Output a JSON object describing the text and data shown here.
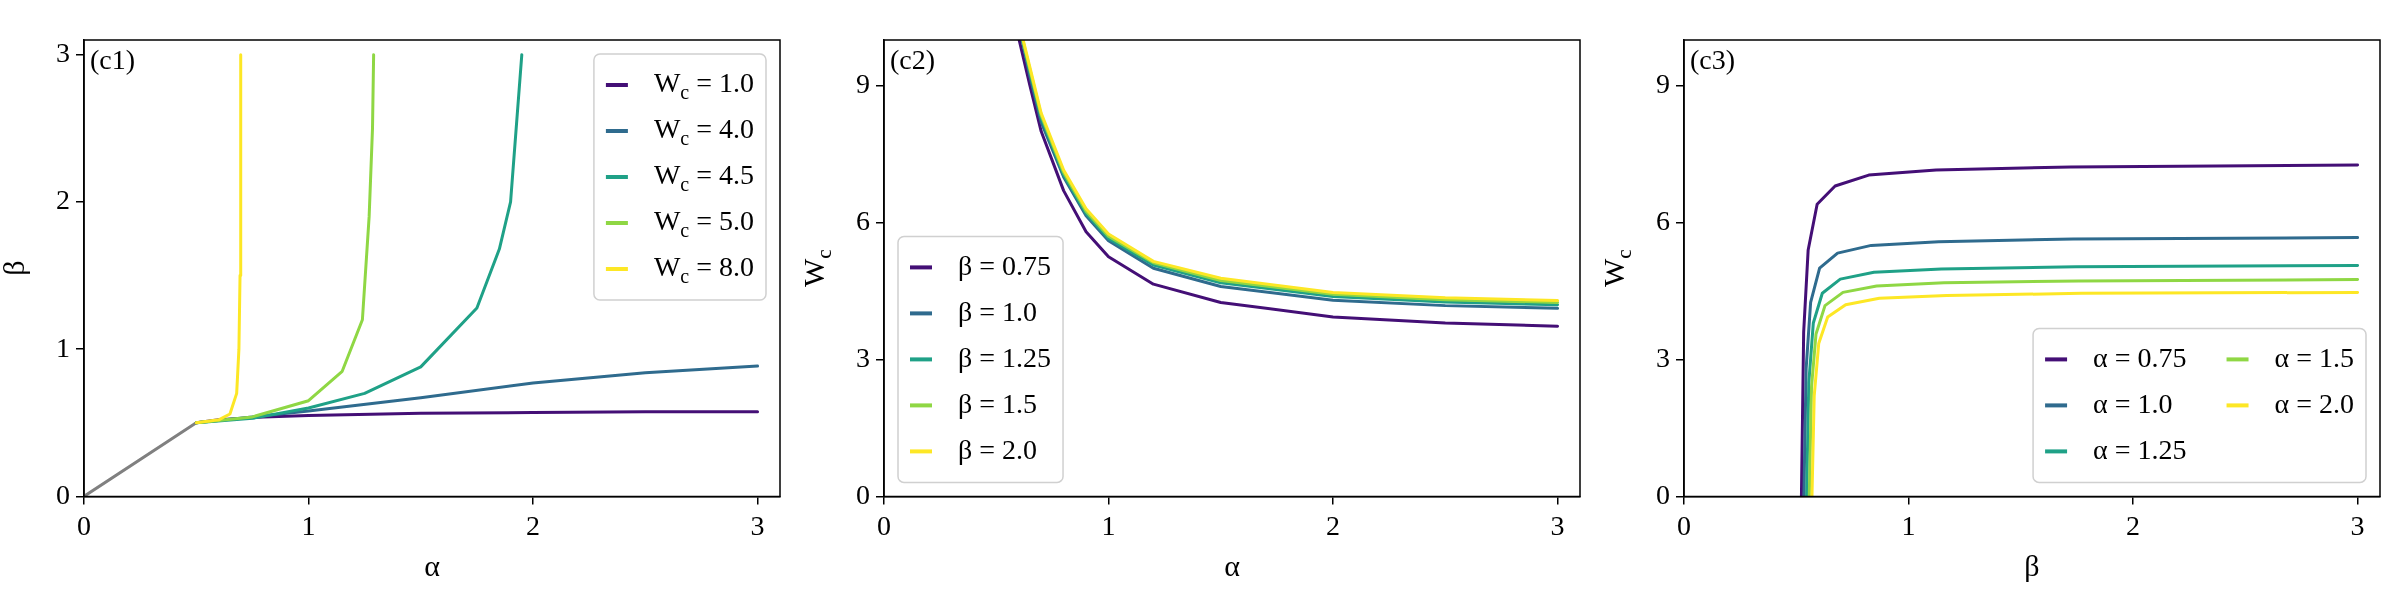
{
  "chart_data": [
    {
      "type": "line",
      "xlabel": "α",
      "ylabel": "β",
      "annotations": [
        "(c1)"
      ],
      "xlim": [
        0,
        3.1
      ],
      "ylim": [
        0,
        3.1
      ],
      "xticks": [
        0,
        1,
        2,
        3
      ],
      "yticks": [
        0,
        1,
        2,
        3
      ],
      "grid": false,
      "legend": "top right",
      "series": [
        {
          "color": "#808080",
          "x": [
            0,
            0.5
          ],
          "values": [
            0,
            0.5
          ]
        },
        {
          "name": "W$_{c}$ = 1.0",
          "color": "#440f76",
          "x": [
            0.5,
            0.6,
            0.8,
            1.0,
            1.5,
            2.0,
            2.5,
            3.0
          ],
          "values": [
            0.5,
            0.52,
            0.54,
            0.55,
            0.565,
            0.57,
            0.575,
            0.575
          ]
        },
        {
          "name": "W$_{c}$ = 4.0",
          "color": "#2f6b8e",
          "x": [
            0.5,
            0.75,
            1.0,
            1.5,
            2.0,
            2.5,
            3.0
          ],
          "values": [
            0.5,
            0.54,
            0.58,
            0.67,
            0.77,
            0.84,
            0.885
          ]
        },
        {
          "name": "W$_{c}$ = 4.5",
          "color": "#1fa187",
          "x": [
            0.5,
            0.75,
            1.0,
            1.25,
            1.5,
            1.75,
            1.85,
            1.9,
            1.95
          ],
          "values": [
            0.5,
            0.53,
            0.6,
            0.7,
            0.88,
            1.28,
            1.68,
            2.0,
            3.0
          ]
        },
        {
          "name": "W$_{c}$ = 5.0",
          "color": "#8fd744",
          "x": [
            0.5,
            0.75,
            1.0,
            1.15,
            1.24,
            1.27,
            1.285,
            1.29
          ],
          "values": [
            0.5,
            0.54,
            0.65,
            0.85,
            1.2,
            1.9,
            2.5,
            3.0
          ]
        },
        {
          "name": "W$_{c}$ = 8.0",
          "color": "#fde725",
          "x": [
            0.5,
            0.6,
            0.65,
            0.68,
            0.69,
            0.695,
            0.698
          ],
          "values": [
            0.5,
            0.52,
            0.56,
            0.7,
            1.0,
            1.5,
            3.0
          ]
        }
      ]
    },
    {
      "type": "line",
      "xlabel": "α",
      "ylabel": "W$_{c}$",
      "annotations": [
        "(c2)"
      ],
      "xlim": [
        0,
        3.1
      ],
      "ylim": [
        0,
        10
      ],
      "xticks": [
        0,
        1,
        2,
        3
      ],
      "yticks": [
        0,
        3,
        6,
        9
      ],
      "grid": false,
      "legend": "bottom left",
      "series": [
        {
          "name": "β = 0.75",
          "color": "#440f76",
          "x": [
            0.602,
            0.65,
            0.7,
            0.8,
            0.9,
            1.0,
            1.2,
            1.5,
            2.0,
            2.5,
            3.0
          ],
          "values": [
            10,
            9.0,
            8.0,
            6.7,
            5.8,
            5.25,
            4.65,
            4.25,
            3.93,
            3.8,
            3.73
          ]
        },
        {
          "name": "β = 1.0",
          "color": "#2f6b8e",
          "x": [
            0.615,
            0.65,
            0.7,
            0.8,
            0.9,
            1.0,
            1.2,
            1.5,
            2.0,
            2.5,
            3.0
          ],
          "values": [
            10,
            9.2,
            8.2,
            7.0,
            6.15,
            5.6,
            5.0,
            4.6,
            4.3,
            4.18,
            4.12
          ]
        },
        {
          "name": "β = 1.25",
          "color": "#1fa187",
          "x": [
            0.617,
            0.65,
            0.7,
            0.8,
            0.9,
            1.0,
            1.2,
            1.5,
            2.0,
            2.5,
            3.0
          ],
          "values": [
            10,
            9.3,
            8.3,
            7.05,
            6.2,
            5.65,
            5.07,
            4.68,
            4.38,
            4.26,
            4.2
          ]
        },
        {
          "name": "β = 1.5",
          "color": "#8fd744",
          "x": [
            0.618,
            0.65,
            0.7,
            0.8,
            0.9,
            1.0,
            1.2,
            1.5,
            2.0,
            2.5,
            3.0
          ],
          "values": [
            10,
            9.35,
            8.35,
            7.1,
            6.25,
            5.7,
            5.12,
            4.73,
            4.43,
            4.31,
            4.25
          ]
        },
        {
          "name": "β = 2.0",
          "color": "#fde725",
          "x": [
            0.62,
            0.65,
            0.7,
            0.8,
            0.9,
            1.0,
            1.2,
            1.5,
            2.0,
            2.5,
            3.0
          ],
          "values": [
            10,
            9.4,
            8.4,
            7.15,
            6.3,
            5.75,
            5.15,
            4.78,
            4.47,
            4.35,
            4.29
          ]
        }
      ]
    },
    {
      "type": "line",
      "xlabel": "β",
      "ylabel": "W$_{c}$",
      "annotations": [
        "(c3)"
      ],
      "xlim": [
        0,
        3.1
      ],
      "ylim": [
        0,
        10
      ],
      "xticks": [
        0,
        1,
        2,
        3
      ],
      "yticks": [
        0,
        3,
        6,
        9
      ],
      "grid": false,
      "legend": "bottom right",
      "series": [
        {
          "name": "α = 0.75",
          "color": "#440f76",
          "x": [
            0.523,
            0.533,
            0.553,
            0.593,
            0.673,
            0.823,
            1.123,
            1.723,
            3.0
          ],
          "values": [
            0,
            3.6,
            5.4,
            6.4,
            6.8,
            7.04,
            7.15,
            7.22,
            7.26
          ]
        },
        {
          "name": "α = 1.0",
          "color": "#2f6b8e",
          "x": [
            0.534,
            0.544,
            0.564,
            0.604,
            0.684,
            0.834,
            1.134,
            1.734,
            3.0
          ],
          "values": [
            0,
            2.8,
            4.25,
            5.0,
            5.33,
            5.5,
            5.58,
            5.64,
            5.67
          ]
        },
        {
          "name": "α = 1.25",
          "color": "#1fa187",
          "x": [
            0.546,
            0.556,
            0.576,
            0.616,
            0.696,
            0.846,
            1.146,
            1.746,
            3.0
          ],
          "values": [
            0,
            2.5,
            3.8,
            4.45,
            4.76,
            4.91,
            4.98,
            5.03,
            5.06
          ]
        },
        {
          "name": "α = 1.5",
          "color": "#8fd744",
          "x": [
            0.558,
            0.568,
            0.588,
            0.628,
            0.708,
            0.858,
            1.158,
            1.758,
            3.0
          ],
          "values": [
            0,
            2.4,
            3.56,
            4.18,
            4.47,
            4.61,
            4.68,
            4.72,
            4.75
          ]
        },
        {
          "name": "α = 2.0",
          "color": "#fde725",
          "x": [
            0.57,
            0.58,
            0.6,
            0.64,
            0.72,
            0.87,
            1.17,
            1.77,
            3.0
          ],
          "values": [
            0,
            2.2,
            3.35,
            3.93,
            4.2,
            4.34,
            4.4,
            4.45,
            4.47
          ]
        }
      ]
    }
  ]
}
